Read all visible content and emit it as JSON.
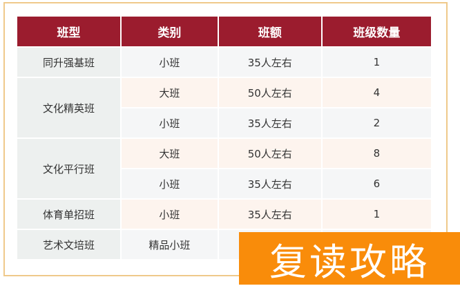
{
  "headers": [
    "班型",
    "类别",
    "班额",
    "班级数量"
  ],
  "rows": [
    {
      "type": "同升强基班",
      "category": "小班",
      "size": "35人左右",
      "count": "1"
    },
    {
      "type": "文化精英班",
      "category": "大班",
      "size": "50人左右",
      "count": "4"
    },
    {
      "category": "小班",
      "size": "35人左右",
      "count": "2"
    },
    {
      "type": "文化平行班",
      "category": "大班",
      "size": "50人左右",
      "count": "8"
    },
    {
      "category": "小班",
      "size": "35人左右",
      "count": "6"
    },
    {
      "type": "体育单招班",
      "category": "小班",
      "size": "35人左右",
      "count": "1"
    },
    {
      "type": "艺术文培班",
      "category": "精品小班",
      "size": "",
      "count": ""
    }
  ],
  "banner": "复读攻略",
  "colors": {
    "header": "#9b1c2e",
    "frame": "#efc98a",
    "banner": "#f98c0a"
  }
}
